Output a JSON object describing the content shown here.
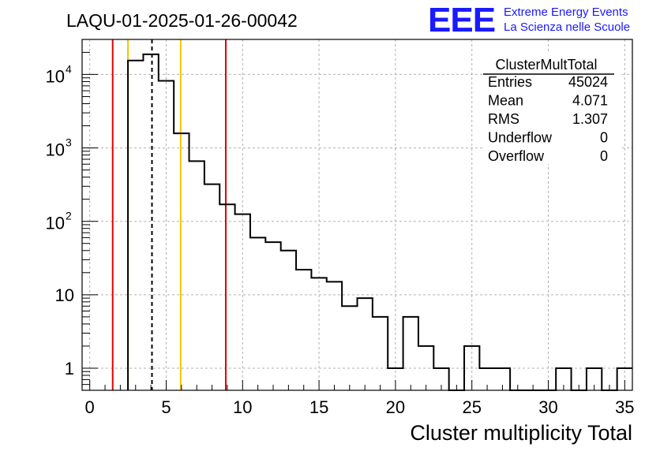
{
  "chart_data": {
    "type": "histogram",
    "title": "LAQU-01-2025-01-26-00042",
    "xlabel": "Cluster multiplicity Total",
    "ylabel": "",
    "xlim": [
      -0.5,
      35.5
    ],
    "ylim_log": [
      0.5,
      30000
    ],
    "y_scale": "log",
    "grid": true,
    "x_ticks": [
      "0",
      "5",
      "10",
      "15",
      "20",
      "25",
      "30",
      "35"
    ],
    "y_ticks": [
      {
        "value": 1,
        "label": "1"
      },
      {
        "value": 10,
        "label": "10"
      },
      {
        "value": 100,
        "base": "10",
        "exp": "2"
      },
      {
        "value": 1000,
        "base": "10",
        "exp": "3"
      },
      {
        "value": 10000,
        "base": "10",
        "exp": "4"
      }
    ],
    "bins": [
      {
        "lo": 2.5,
        "hi": 3.5,
        "value": 15500
      },
      {
        "lo": 3.5,
        "hi": 4.5,
        "value": 18800
      },
      {
        "lo": 4.5,
        "hi": 5.5,
        "value": 8200
      },
      {
        "lo": 5.5,
        "hi": 6.5,
        "value": 1580
      },
      {
        "lo": 6.5,
        "hi": 7.5,
        "value": 660
      },
      {
        "lo": 7.5,
        "hi": 8.5,
        "value": 320
      },
      {
        "lo": 8.5,
        "hi": 9.5,
        "value": 170
      },
      {
        "lo": 9.5,
        "hi": 10.5,
        "value": 125
      },
      {
        "lo": 10.5,
        "hi": 11.5,
        "value": 60
      },
      {
        "lo": 11.5,
        "hi": 12.5,
        "value": 52
      },
      {
        "lo": 12.5,
        "hi": 13.5,
        "value": 40
      },
      {
        "lo": 13.5,
        "hi": 14.5,
        "value": 22
      },
      {
        "lo": 14.5,
        "hi": 15.5,
        "value": 17
      },
      {
        "lo": 15.5,
        "hi": 16.5,
        "value": 15
      },
      {
        "lo": 16.5,
        "hi": 17.5,
        "value": 7
      },
      {
        "lo": 17.5,
        "hi": 18.5,
        "value": 9
      },
      {
        "lo": 18.5,
        "hi": 19.5,
        "value": 5
      },
      {
        "lo": 19.5,
        "hi": 20.5,
        "value": 1
      },
      {
        "lo": 20.5,
        "hi": 21.5,
        "value": 5
      },
      {
        "lo": 21.5,
        "hi": 22.5,
        "value": 2
      },
      {
        "lo": 22.5,
        "hi": 23.5,
        "value": 1
      },
      {
        "lo": 23.5,
        "hi": 24.5,
        "value": 0
      },
      {
        "lo": 24.5,
        "hi": 25.5,
        "value": 2
      },
      {
        "lo": 25.5,
        "hi": 26.5,
        "value": 1
      },
      {
        "lo": 26.5,
        "hi": 27.5,
        "value": 1
      },
      {
        "lo": 27.5,
        "hi": 28.5,
        "value": 0
      },
      {
        "lo": 28.5,
        "hi": 29.5,
        "value": 0
      },
      {
        "lo": 29.5,
        "hi": 30.5,
        "value": 0
      },
      {
        "lo": 30.5,
        "hi": 31.5,
        "value": 1
      },
      {
        "lo": 31.5,
        "hi": 32.5,
        "value": 0
      },
      {
        "lo": 32.5,
        "hi": 33.5,
        "value": 1
      },
      {
        "lo": 33.5,
        "hi": 34.5,
        "value": 0
      },
      {
        "lo": 34.5,
        "hi": 35.5,
        "value": 1
      }
    ],
    "vertical_lines": [
      {
        "x": 1.5,
        "color": "#e00000",
        "style": "solid",
        "name": "red-lower-line"
      },
      {
        "x": 2.5,
        "color": "#f5c400",
        "style": "solid",
        "name": "yellow-lower-line"
      },
      {
        "x": 4.071,
        "color": "#000000",
        "style": "dashed",
        "name": "mean-line"
      },
      {
        "x": 5.95,
        "color": "#f5c400",
        "style": "solid",
        "name": "yellow-upper-line"
      },
      {
        "x": 8.9,
        "color": "#e00000",
        "style": "solid",
        "name": "red-upper-line"
      }
    ],
    "stats_box": {
      "title": "ClusterMultTotal",
      "rows": [
        {
          "label": "Entries",
          "value": "45024"
        },
        {
          "label": "Mean",
          "value": "4.071"
        },
        {
          "label": "RMS",
          "value": "1.307"
        },
        {
          "label": "Underflow",
          "value": "0"
        },
        {
          "label": "Overflow",
          "value": "0"
        }
      ]
    }
  },
  "logo": {
    "mark": "EEE",
    "line1": "Extreme Energy Events",
    "line2": "La Scienza nelle Scuole",
    "color": "#1a1aff"
  }
}
